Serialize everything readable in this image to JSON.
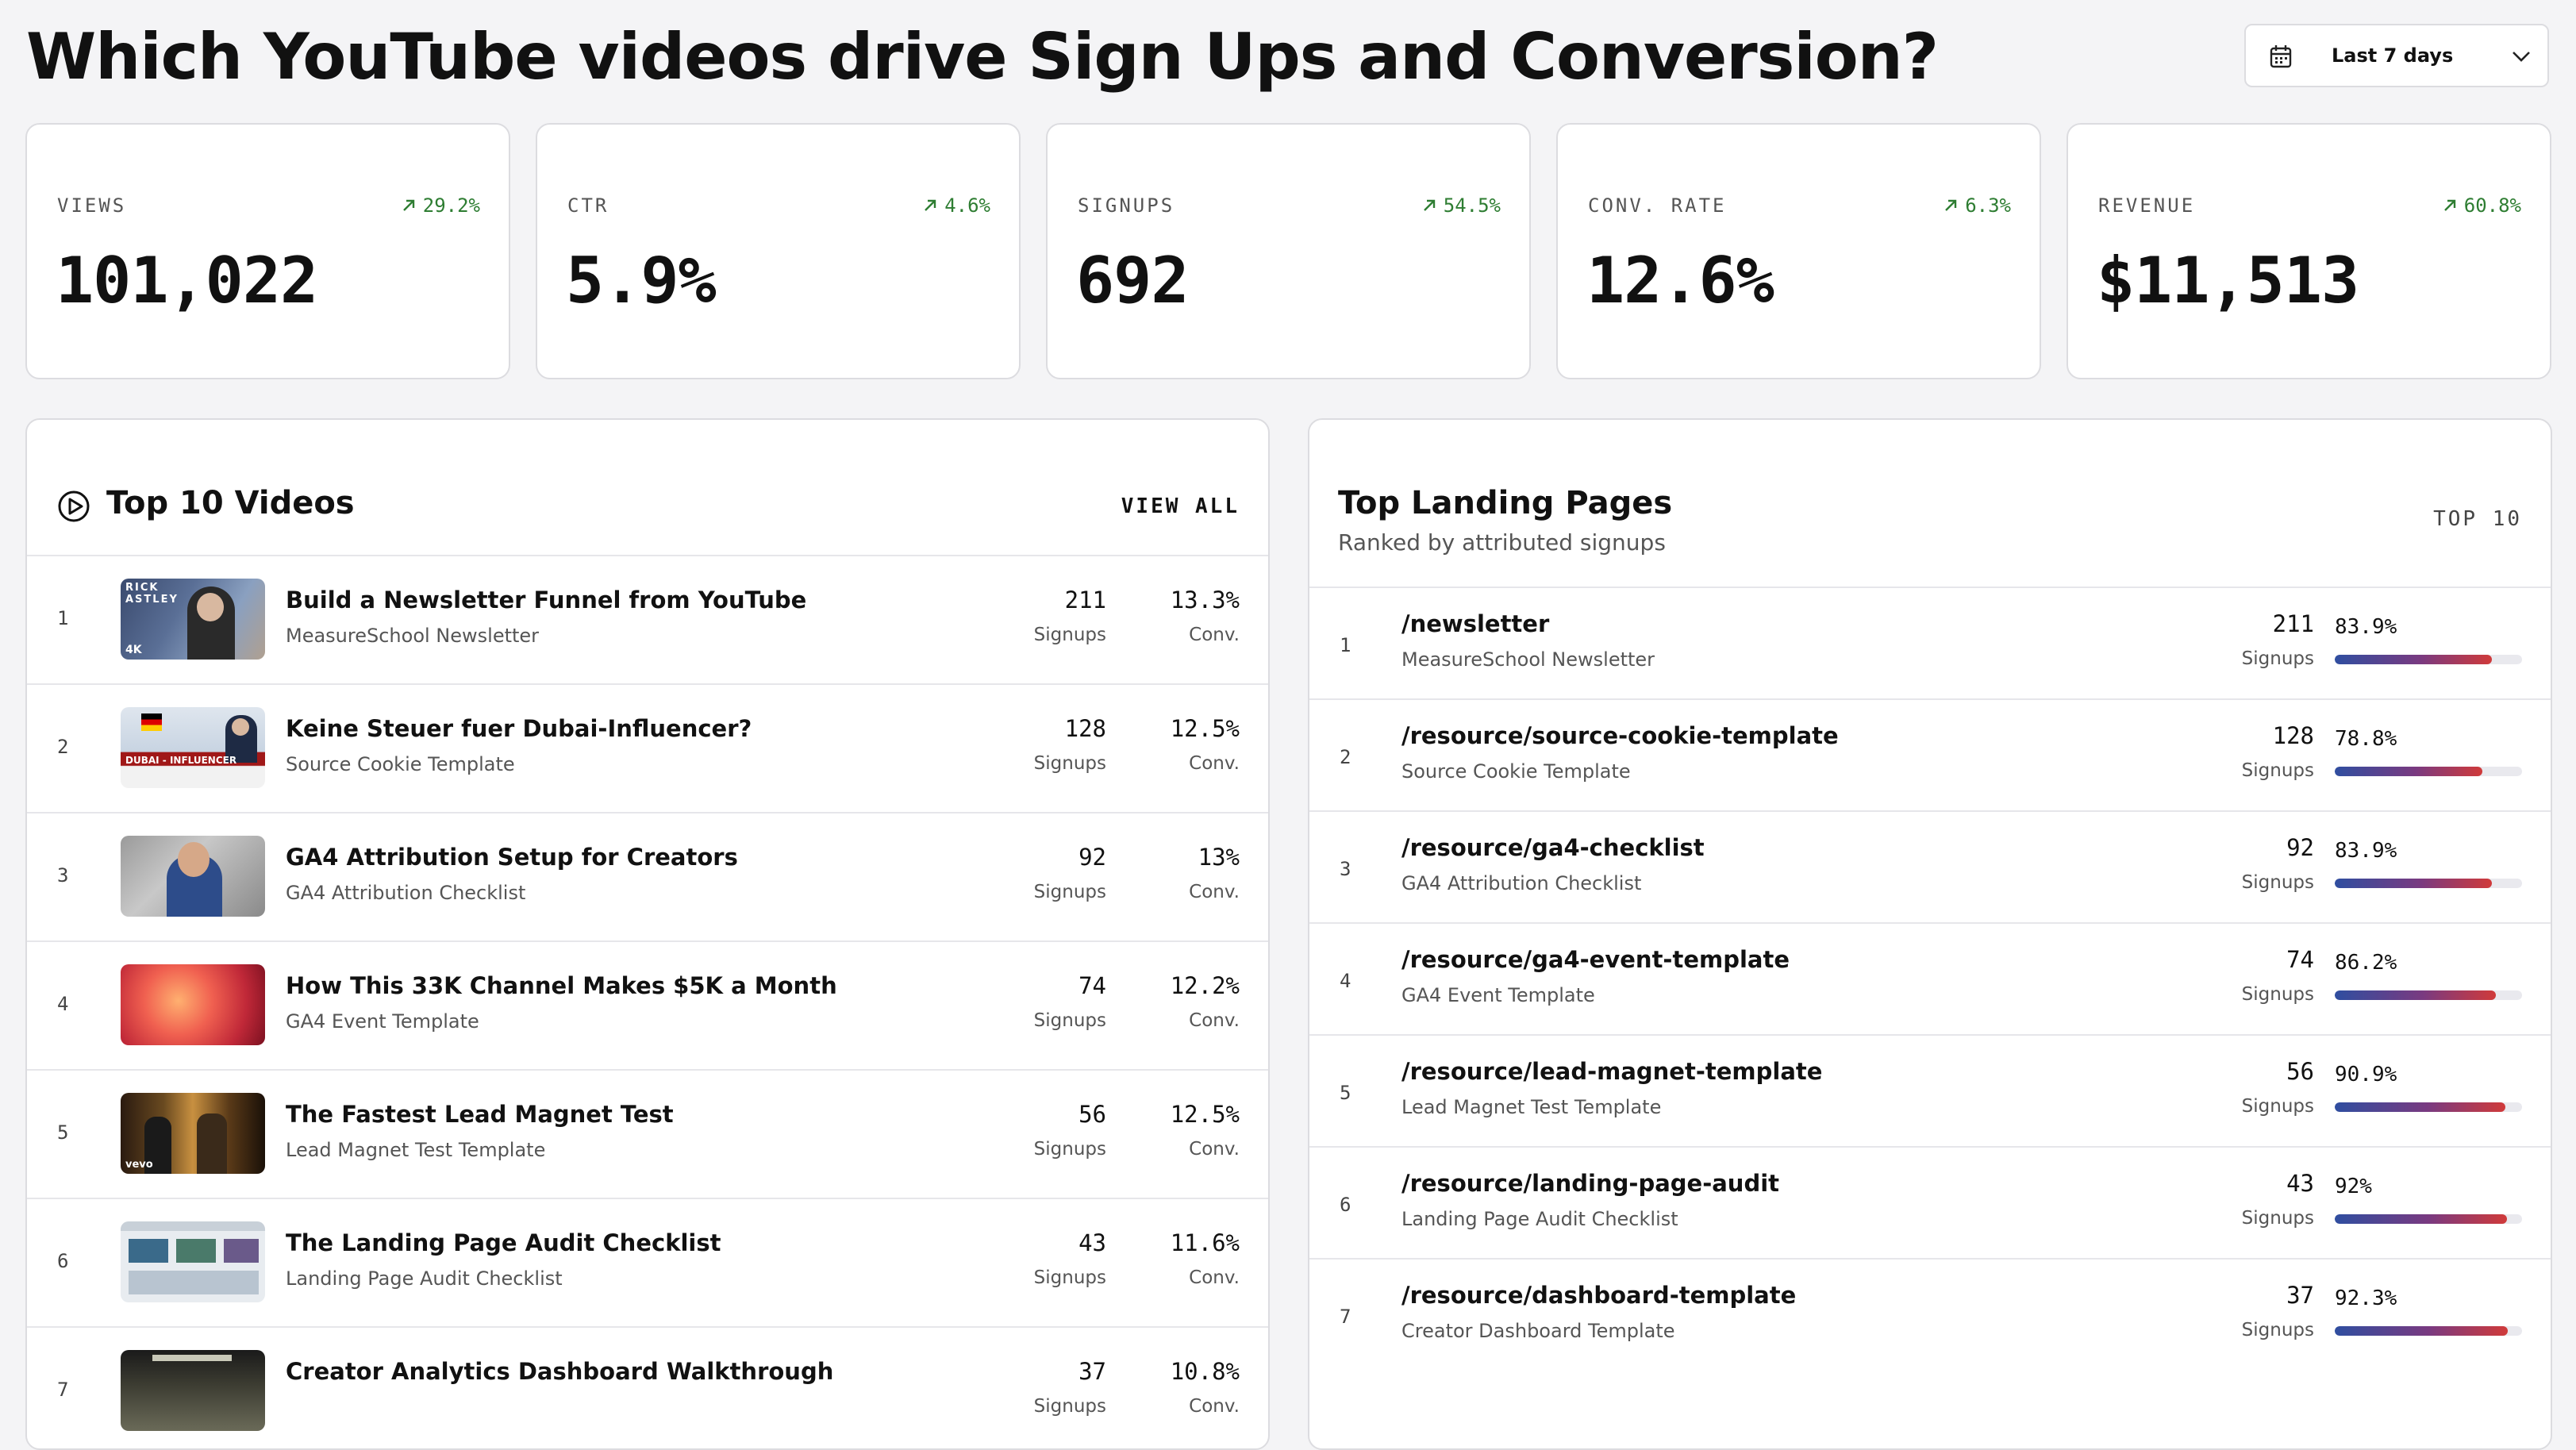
{
  "header": {
    "title": "Which YouTube videos drive Sign Ups and Conversion?",
    "date_range": "Last 7 days"
  },
  "kpis": [
    {
      "label": "VIEWS",
      "value": "101,022",
      "delta": "29.2%"
    },
    {
      "label": "CTR",
      "value": "5.9%",
      "delta": "4.6%"
    },
    {
      "label": "SIGNUPS",
      "value": "692",
      "delta": "54.5%"
    },
    {
      "label": "CONV. RATE",
      "value": "12.6%",
      "delta": "6.3%"
    },
    {
      "label": "REVENUE",
      "value": "$11,513",
      "delta": "60.8%"
    }
  ],
  "videos_panel": {
    "title": "Top 10 Videos",
    "view_all": "VIEW ALL",
    "signups_label": "Signups",
    "conv_label": "Conv.",
    "rows": [
      {
        "rank": "1",
        "title": "Build a Newsletter Funnel from YouTube",
        "sub": "MeasureSchool Newsletter",
        "signups": "211",
        "conv": "13.3%",
        "thumb_text": "RICK ASTLEY",
        "thumb_badge": "4K"
      },
      {
        "rank": "2",
        "title": "Keine Steuer fuer Dubai-Influencer?",
        "sub": "Source Cookie Template",
        "signups": "128",
        "conv": "12.5%",
        "thumb_text": "DUBAI - INFLUENCER"
      },
      {
        "rank": "3",
        "title": "GA4 Attribution Setup for Creators",
        "sub": "GA4 Attribution Checklist",
        "signups": "92",
        "conv": "13%"
      },
      {
        "rank": "4",
        "title": "How This 33K Channel Makes $5K a Month",
        "sub": "GA4 Event Template",
        "signups": "74",
        "conv": "12.2%"
      },
      {
        "rank": "5",
        "title": "The Fastest Lead Magnet Test",
        "sub": "Lead Magnet Test Template",
        "signups": "56",
        "conv": "12.5%",
        "thumb_badge": "vevo"
      },
      {
        "rank": "6",
        "title": "The Landing Page Audit Checklist",
        "sub": "Landing Page Audit Checklist",
        "signups": "43",
        "conv": "11.6%"
      },
      {
        "rank": "7",
        "title": "Creator Analytics Dashboard Walkthrough",
        "sub": "",
        "signups": "37",
        "conv": "10.8%"
      }
    ]
  },
  "landing_panel": {
    "title": "Top Landing Pages",
    "subtitle": "Ranked by attributed signups",
    "badge": "TOP 10",
    "signups_label": "Signups",
    "colors": {
      "bar_start": "#2f4ea0",
      "bar_end": "#d03a3a"
    },
    "rows": [
      {
        "rank": "1",
        "path": "/newsletter",
        "sub": "MeasureSchool Newsletter",
        "signups": "211",
        "pct": "83.9%",
        "fill": 0.839
      },
      {
        "rank": "2",
        "path": "/resource/source-cookie-template",
        "sub": "Source Cookie Template",
        "signups": "128",
        "pct": "78.8%",
        "fill": 0.788
      },
      {
        "rank": "3",
        "path": "/resource/ga4-checklist",
        "sub": "GA4 Attribution Checklist",
        "signups": "92",
        "pct": "83.9%",
        "fill": 0.839
      },
      {
        "rank": "4",
        "path": "/resource/ga4-event-template",
        "sub": "GA4 Event Template",
        "signups": "74",
        "pct": "86.2%",
        "fill": 0.862
      },
      {
        "rank": "5",
        "path": "/resource/lead-magnet-template",
        "sub": "Lead Magnet Test Template",
        "signups": "56",
        "pct": "90.9%",
        "fill": 0.909
      },
      {
        "rank": "6",
        "path": "/resource/landing-page-audit",
        "sub": "Landing Page Audit Checklist",
        "signups": "43",
        "pct": "92%",
        "fill": 0.92
      },
      {
        "rank": "7",
        "path": "/resource/dashboard-template",
        "sub": "Creator Dashboard Template",
        "signups": "37",
        "pct": "92.3%",
        "fill": 0.923
      }
    ]
  }
}
